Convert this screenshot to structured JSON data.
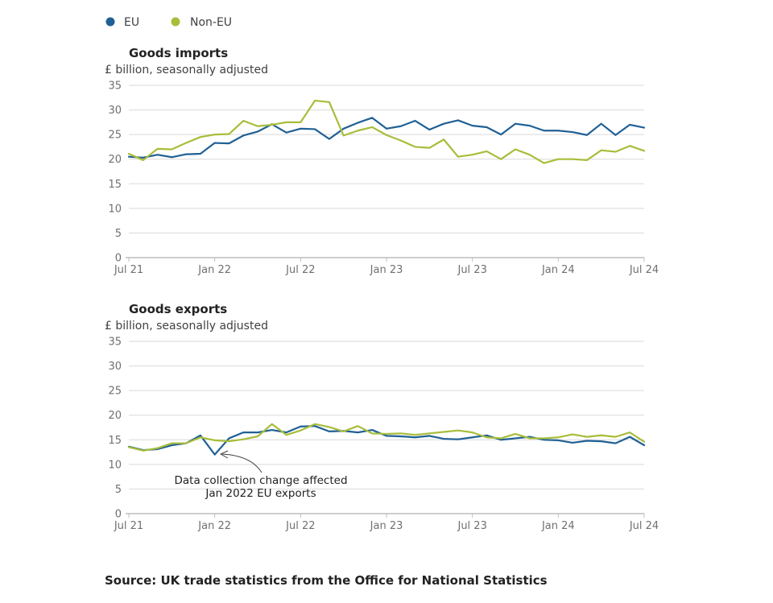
{
  "legend": [
    {
      "label": "EU",
      "color": "#206095"
    },
    {
      "label": "Non-EU",
      "color": "#a8bd3a"
    }
  ],
  "source": "Source: UK trade statistics from the Office for National Statistics",
  "chart_data": [
    {
      "type": "line",
      "title": "Goods imports",
      "ylabel": "£ billion, seasonally adjusted",
      "ylim": [
        0,
        35
      ],
      "yticks": [
        0,
        5,
        10,
        15,
        20,
        25,
        30,
        35
      ],
      "xticks": [
        "Jul 21",
        "Jan 22",
        "Jul 22",
        "Jan 23",
        "Jul 23",
        "Jan 24",
        "Jul 24"
      ],
      "grid": true,
      "x_start": "Jul 21",
      "x_end": "Jul 24",
      "series": [
        {
          "name": "EU",
          "color": "#206095",
          "values": [
            20.5,
            20.3,
            20.9,
            20.4,
            21.0,
            21.1,
            23.3,
            23.2,
            24.8,
            25.6,
            27.1,
            25.4,
            26.2,
            26.1,
            24.1,
            26.2,
            27.4,
            28.4,
            26.2,
            26.7,
            27.8,
            26.0,
            27.2,
            27.9,
            26.8,
            26.5,
            25.0,
            27.2,
            26.8,
            25.8,
            25.8,
            25.5,
            24.9,
            27.2,
            24.9,
            27.0,
            26.4
          ]
        },
        {
          "name": "Non-EU",
          "color": "#a8bd3a",
          "values": [
            21.1,
            19.8,
            22.1,
            22.0,
            23.3,
            24.5,
            25.0,
            25.1,
            27.8,
            26.7,
            27.0,
            27.5,
            27.5,
            31.9,
            31.6,
            24.8,
            25.8,
            26.5,
            24.9,
            23.8,
            22.5,
            22.3,
            24.0,
            20.5,
            20.9,
            21.6,
            20.0,
            22.0,
            20.9,
            19.2,
            20.0,
            20.0,
            19.8,
            21.8,
            21.5,
            22.7,
            21.7
          ]
        }
      ]
    },
    {
      "type": "line",
      "title": "Goods exports",
      "ylabel": "£ billion, seasonally adjusted",
      "ylim": [
        0,
        35
      ],
      "yticks": [
        0,
        5,
        10,
        15,
        20,
        25,
        30,
        35
      ],
      "xticks": [
        "Jul 21",
        "Jan 22",
        "Jul 22",
        "Jan 23",
        "Jul 23",
        "Jan 24",
        "Jul 24"
      ],
      "grid": true,
      "x_start": "Jul 21",
      "x_end": "Jul 24",
      "annotation": {
        "lines": [
          "Data collection change affected",
          "Jan 2022 EU exports"
        ],
        "target": "Jan 22"
      },
      "series": [
        {
          "name": "EU",
          "color": "#206095",
          "values": [
            13.6,
            12.9,
            13.1,
            13.9,
            14.3,
            15.9,
            12.0,
            15.3,
            16.5,
            16.5,
            17.0,
            16.5,
            17.7,
            17.8,
            16.7,
            16.8,
            16.5,
            17.0,
            15.8,
            15.7,
            15.5,
            15.8,
            15.2,
            15.1,
            15.5,
            15.9,
            15.0,
            15.3,
            15.6,
            15.0,
            14.9,
            14.4,
            14.8,
            14.7,
            14.3,
            15.6,
            13.9
          ]
        },
        {
          "name": "Non-EU",
          "color": "#a8bd3a",
          "values": [
            13.5,
            12.8,
            13.3,
            14.3,
            14.3,
            15.5,
            14.9,
            14.7,
            15.1,
            15.7,
            18.2,
            16.0,
            16.9,
            18.2,
            17.6,
            16.7,
            17.8,
            16.3,
            16.2,
            16.3,
            16.0,
            16.3,
            16.6,
            16.9,
            16.5,
            15.5,
            15.3,
            16.2,
            15.3,
            15.3,
            15.5,
            16.1,
            15.6,
            15.9,
            15.6,
            16.5,
            14.6
          ]
        }
      ]
    }
  ]
}
